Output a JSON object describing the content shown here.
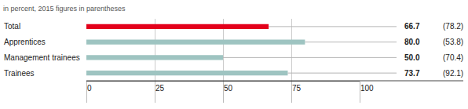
{
  "chart_data": {
    "type": "bar",
    "orientation": "horizontal",
    "title": "in percent, 2015 figures in parentheses",
    "categories": [
      "Total",
      "Apprentices",
      "Management trainees",
      "Trainees"
    ],
    "values": [
      66.7,
      80,
      50,
      73.7
    ],
    "value_labels": [
      "66.7",
      "80.0",
      "50.0",
      "73.7"
    ],
    "prior_values": [
      78.2,
      53.8,
      70.4,
      92.1
    ],
    "prior_value_labels": [
      "(78.2)",
      "(53.8)",
      "(70.4)",
      "(92.1)"
    ],
    "colors": [
      "#e3001b",
      "#9ec4c1",
      "#9ec4c1",
      "#9ec4c1"
    ],
    "xlim": [
      0,
      100
    ],
    "xticks": [
      0,
      25,
      50,
      75,
      100
    ],
    "grid": true,
    "data_labels": true
  }
}
